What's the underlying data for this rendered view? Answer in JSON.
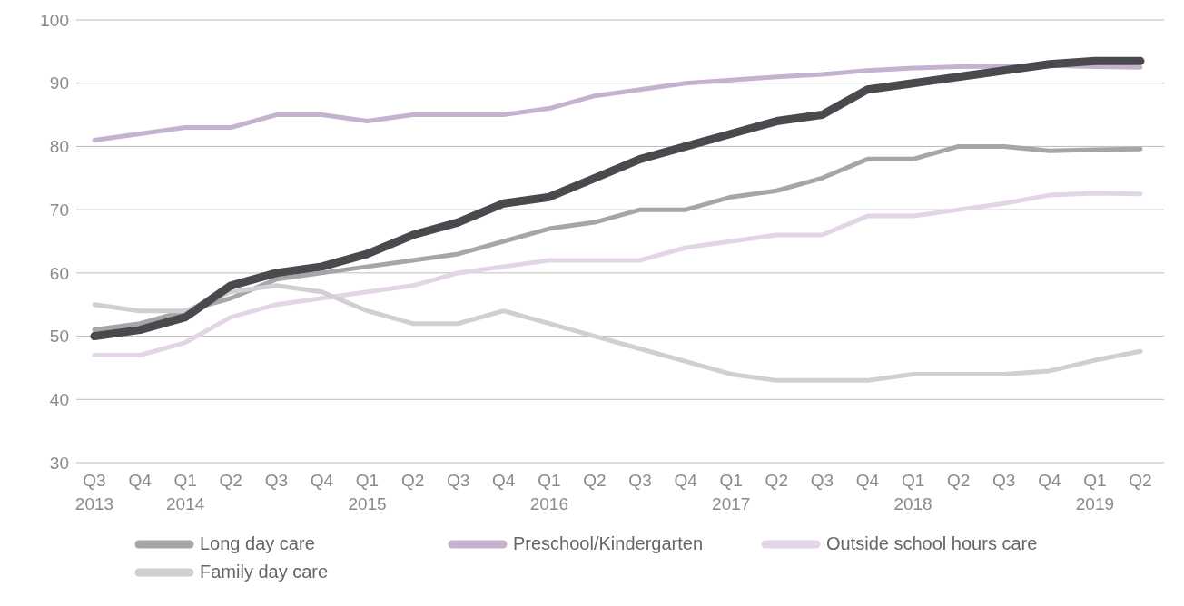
{
  "chart_data": {
    "type": "line",
    "categories": [
      "Q3\n2013",
      "Q4",
      "Q1\n2014",
      "Q2",
      "Q3",
      "Q4",
      "Q1\n2015",
      "Q2",
      "Q3",
      "Q4",
      "Q1\n2016",
      "Q2",
      "Q3",
      "Q4",
      "Q1\n2017",
      "Q2",
      "Q3",
      "Q4",
      "Q1\n2018",
      "Q2",
      "Q3",
      "Q4",
      "Q1\n2019",
      "Q2"
    ],
    "series": [
      {
        "name": "Long day care",
        "color": "#a7a5a8",
        "values": [
          51,
          52,
          54,
          56,
          59,
          60,
          61,
          62,
          63,
          65,
          67,
          68,
          70,
          70,
          72,
          73,
          75,
          78,
          78,
          80,
          80,
          79.3,
          79.5,
          79.6
        ]
      },
      {
        "name": "Preschool/Kindergarten",
        "color": "#c5b2cf",
        "values": [
          81,
          82,
          83,
          83,
          85,
          85,
          84,
          85,
          85,
          85,
          86,
          88,
          89,
          90,
          90.5,
          91,
          91.4,
          92,
          92.4,
          92.6,
          92.7,
          92.8,
          92.6,
          92.5
        ]
      },
      {
        "name": "Outside school hours care",
        "color": "#e2d5e6",
        "values": [
          47,
          47,
          49,
          53,
          55,
          56,
          57,
          58,
          60,
          61,
          62,
          62,
          62,
          64,
          65,
          66,
          66,
          69,
          69,
          70,
          71,
          72.3,
          72.6,
          72.5
        ]
      },
      {
        "name": "Family day care",
        "color": "#d0cfd1",
        "values": [
          55,
          54,
          54,
          57,
          58,
          57,
          54,
          52,
          52,
          54,
          52,
          50,
          48,
          46,
          44,
          43,
          43,
          43,
          44,
          44,
          44,
          44.5,
          46.2,
          47.6
        ]
      },
      {
        "color": "#4a4a4e",
        "values": [
          50,
          51,
          53,
          58,
          60,
          61,
          63,
          66,
          68,
          71,
          72,
          75,
          78,
          80,
          82,
          84,
          85,
          89,
          90,
          91,
          92,
          93,
          93.5,
          93.5
        ]
      }
    ],
    "ylim": [
      30,
      100
    ],
    "yticks": [
      30,
      40,
      50,
      60,
      70,
      80,
      90,
      100
    ],
    "grid": "y",
    "legend": "bottom",
    "marker": "none",
    "line_style": "solid"
  }
}
